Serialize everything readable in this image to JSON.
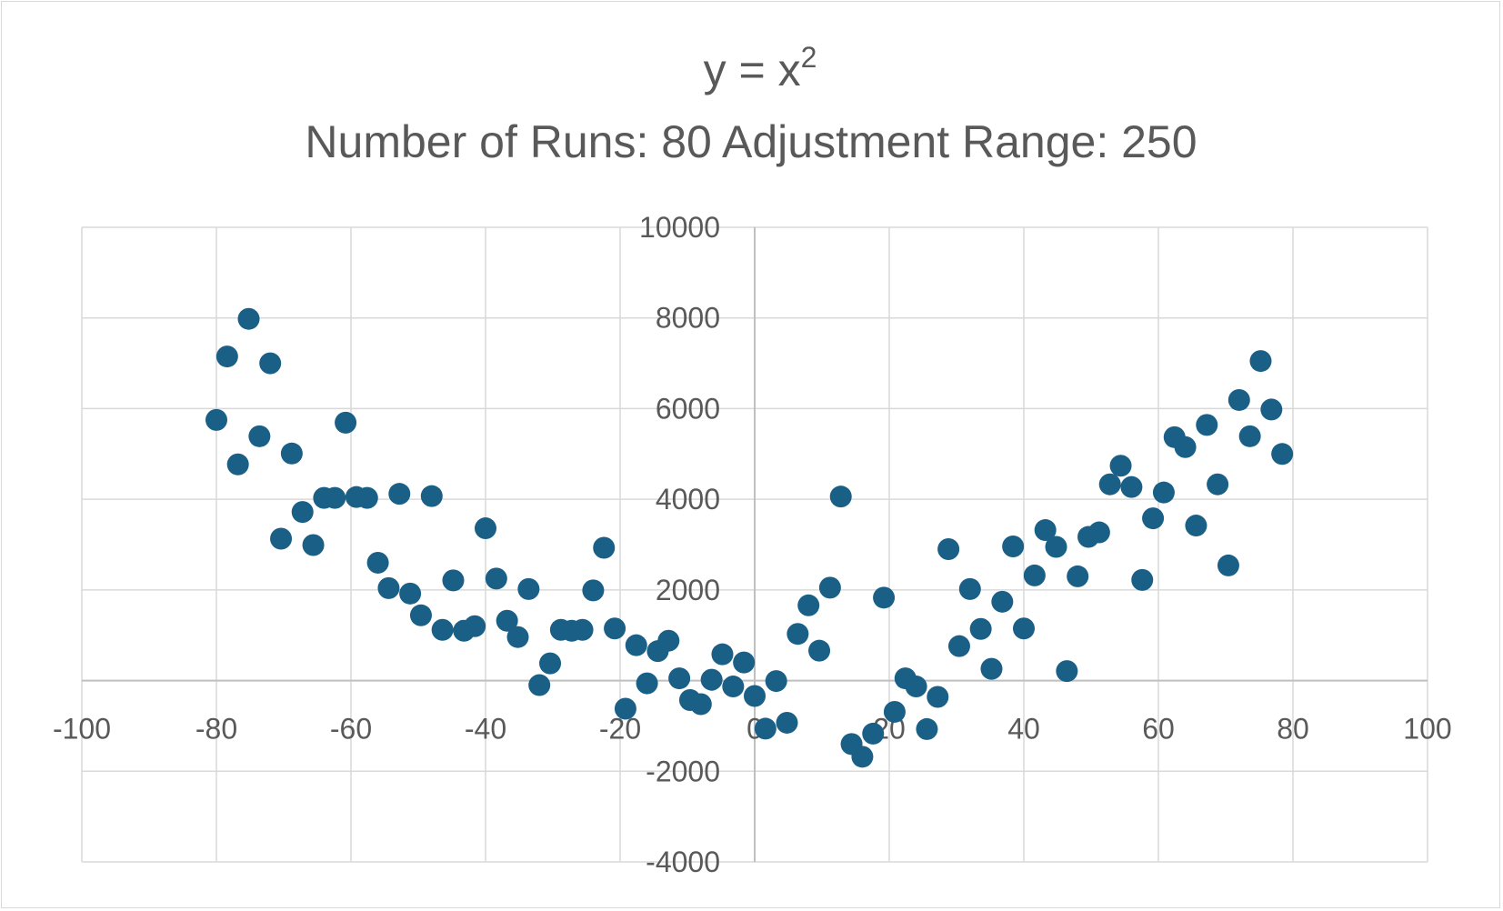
{
  "chart_data": {
    "type": "scatter",
    "title": "y = x",
    "title_superscript": "2",
    "subtitle": "Number of Runs: 80 Adjustment Range: 250",
    "xlabel": "",
    "ylabel": "",
    "xlim": [
      -100,
      100
    ],
    "ylim": [
      -4000,
      10000
    ],
    "x_ticks": [
      "-100",
      "-80",
      "-60",
      "-40",
      "-20",
      "0",
      "20",
      "40",
      "60",
      "80",
      "100"
    ],
    "y_ticks": [
      "-4000",
      "-2000",
      "0",
      "2000",
      "4000",
      "6000",
      "8000",
      "10000"
    ],
    "grid": true,
    "legend": "none",
    "marker_color": "#1a5f86",
    "grid_color": "#d9d9d9",
    "axis_color": "#bfbfbf",
    "series": [
      {
        "points": [
          [
            -80,
            5750
          ],
          [
            -78.4,
            7150
          ],
          [
            -76.8,
            4770
          ],
          [
            -75.2,
            7980
          ],
          [
            -73.6,
            5390
          ],
          [
            -72,
            7000
          ],
          [
            -70.4,
            3130
          ],
          [
            -68.8,
            5010
          ],
          [
            -67.2,
            3720
          ],
          [
            -65.6,
            2990
          ],
          [
            -64,
            4030
          ],
          [
            -62.4,
            4030
          ],
          [
            -60.8,
            5690
          ],
          [
            -59.2,
            4050
          ],
          [
            -57.6,
            4030
          ],
          [
            -56,
            2600
          ],
          [
            -54.4,
            2040
          ],
          [
            -52.8,
            4120
          ],
          [
            -51.2,
            1920
          ],
          [
            -49.6,
            1440
          ],
          [
            -48,
            4070
          ],
          [
            -46.4,
            1120
          ],
          [
            -44.8,
            2210
          ],
          [
            -43.2,
            1100
          ],
          [
            -41.6,
            1200
          ],
          [
            -40,
            3360
          ],
          [
            -38.4,
            2250
          ],
          [
            -36.8,
            1320
          ],
          [
            -35.2,
            960
          ],
          [
            -33.6,
            2020
          ],
          [
            -32,
            -100
          ],
          [
            -30.4,
            380
          ],
          [
            -28.8,
            1120
          ],
          [
            -27.2,
            1100
          ],
          [
            -25.6,
            1120
          ],
          [
            -24,
            1990
          ],
          [
            -22.4,
            2930
          ],
          [
            -20.8,
            1150
          ],
          [
            -19.2,
            -620
          ],
          [
            -17.6,
            780
          ],
          [
            -16,
            -60
          ],
          [
            -14.4,
            650
          ],
          [
            -12.8,
            880
          ],
          [
            -11.2,
            50
          ],
          [
            -9.6,
            -430
          ],
          [
            -8,
            -520
          ],
          [
            -6.4,
            20
          ],
          [
            -4.8,
            580
          ],
          [
            -3.2,
            -130
          ],
          [
            -1.6,
            400
          ],
          [
            0,
            -340
          ],
          [
            1.6,
            -1060
          ],
          [
            3.2,
            -10
          ],
          [
            4.8,
            -930
          ],
          [
            6.4,
            1030
          ],
          [
            8,
            1660
          ],
          [
            9.6,
            660
          ],
          [
            11.2,
            2050
          ],
          [
            12.8,
            4060
          ],
          [
            14.4,
            -1400
          ],
          [
            16,
            -1680
          ],
          [
            17.6,
            -1170
          ],
          [
            19.2,
            1830
          ],
          [
            20.8,
            -690
          ],
          [
            22.4,
            50
          ],
          [
            24,
            -130
          ],
          [
            25.6,
            -1070
          ],
          [
            27.2,
            -360
          ],
          [
            28.8,
            2900
          ],
          [
            30.4,
            760
          ],
          [
            32,
            2020
          ],
          [
            33.6,
            1140
          ],
          [
            35.2,
            260
          ],
          [
            36.8,
            1740
          ],
          [
            38.4,
            2960
          ],
          [
            40,
            1150
          ],
          [
            41.6,
            2320
          ],
          [
            43.2,
            3320
          ],
          [
            44.8,
            2950
          ],
          [
            46.4,
            210
          ],
          [
            48,
            2300
          ],
          [
            49.6,
            3170
          ],
          [
            51.2,
            3270
          ],
          [
            52.8,
            4330
          ],
          [
            54.4,
            4740
          ],
          [
            56,
            4270
          ],
          [
            57.6,
            2220
          ],
          [
            59.2,
            3580
          ],
          [
            60.8,
            4150
          ],
          [
            62.4,
            5370
          ],
          [
            64,
            5150
          ],
          [
            65.6,
            3420
          ],
          [
            67.2,
            5640
          ],
          [
            68.8,
            4330
          ],
          [
            70.4,
            2540
          ],
          [
            72,
            6190
          ],
          [
            73.6,
            5390
          ],
          [
            75.2,
            7050
          ],
          [
            76.8,
            5980
          ],
          [
            78.4,
            5000
          ]
        ]
      }
    ]
  }
}
